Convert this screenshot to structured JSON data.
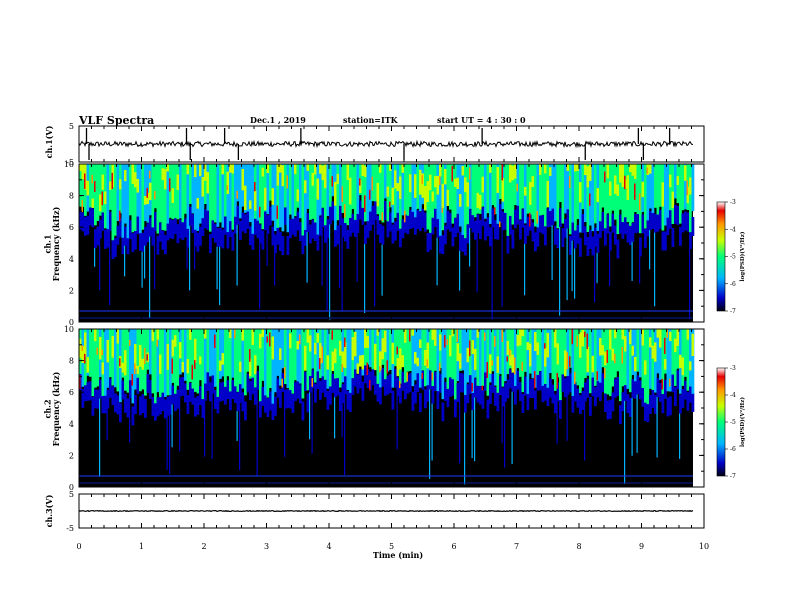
{
  "header": {
    "title": "VLF Spectra",
    "date": "Dec.1 , 2019",
    "station": "station=ITK",
    "start": "start UT =  4 : 30 : 0"
  },
  "colors": {
    "background_low": "#000000",
    "low": "#0000c8",
    "mid_low": "#00b4ff",
    "mid": "#00ff78",
    "mid_high": "#c8ff00",
    "high": "#ff9600",
    "max": "#e60000",
    "trace": "#000000"
  },
  "chart_data": [
    {
      "type": "line",
      "name": "ch.1 waveform",
      "ylabel": "ch.1(V)",
      "ylim": [
        -5,
        5
      ],
      "yticks": [
        "5",
        "-5"
      ],
      "xlim": [
        0,
        10
      ],
      "baseline": 0,
      "spikes_min": [
        0.12,
        0.16,
        1.72,
        1.78,
        2.33,
        2.55,
        3.55,
        5.2,
        6.45,
        8.1,
        8.95,
        9.03,
        9.45
      ]
    },
    {
      "type": "heatmap",
      "name": "ch.1 spectrogram",
      "ylabel": "ch.1\nFrequency (kHz)",
      "ylim": [
        0,
        10
      ],
      "yticks": [
        "0",
        "2",
        "4",
        "6",
        "8",
        "10"
      ],
      "xlim": [
        0,
        10
      ],
      "colorbar": {
        "label": "log(PSD)(V²/Hz)",
        "range": [
          -7,
          -3
        ],
        "ticks": [
          "-3",
          "-4",
          "-5",
          "-6",
          "-7"
        ]
      }
    },
    {
      "type": "heatmap",
      "name": "ch.2 spectrogram",
      "ylabel": "ch.2\nFrequency (kHz)",
      "ylim": [
        0,
        10
      ],
      "yticks": [
        "0",
        "2",
        "4",
        "6",
        "8",
        "10"
      ],
      "xlim": [
        0,
        10
      ],
      "colorbar": {
        "label": "log(PSD)(V²/Hz)",
        "range": [
          -7,
          -3
        ],
        "ticks": [
          "-3",
          "-4",
          "-5",
          "-6",
          "-7"
        ]
      }
    },
    {
      "type": "line",
      "name": "ch.3 waveform",
      "ylabel": "ch.3(V)",
      "ylim": [
        -5,
        5
      ],
      "yticks": [
        "5",
        "-5"
      ],
      "xlim": [
        0,
        10
      ],
      "baseline": 0
    }
  ],
  "xaxis": {
    "label": "Time (min)",
    "ticks": [
      "0",
      "1",
      "2",
      "3",
      "4",
      "5",
      "6",
      "7",
      "8",
      "9",
      "10"
    ]
  }
}
